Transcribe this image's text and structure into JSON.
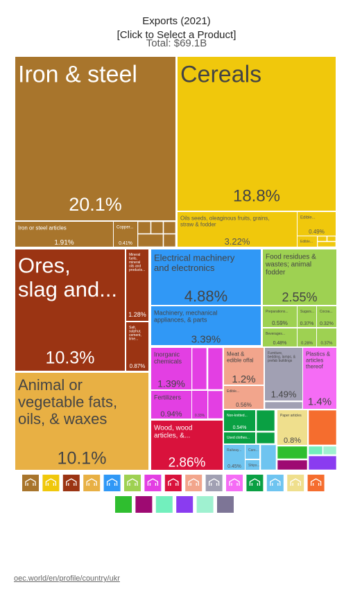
{
  "title": "Exports (2021)",
  "subtitle": "[Click to Select a Product]",
  "total": "Total: $69.1B",
  "source": "oec.world/en/profile/country/ukr",
  "chart_data": {
    "type": "treemap",
    "total": "$69.1B",
    "tiles": [
      {
        "name": "Iron & steel",
        "share": "20.1%",
        "value": 20.1,
        "color": "#a8752c"
      },
      {
        "name": "Iron or steel articles",
        "share": "1.91%",
        "value": 1.91,
        "color": "#a8752c"
      },
      {
        "name": "Copper...",
        "share": "0.41%",
        "value": 0.41,
        "color": "#a8752c"
      },
      {
        "name": "Cereals",
        "share": "18.8%",
        "value": 18.8,
        "color": "#f0c80c"
      },
      {
        "name": "Oils seeds, oleaginous fruits, grains, straw & fodder",
        "share": "3.22%",
        "value": 3.22,
        "color": "#f0c80c"
      },
      {
        "name": "Edible fruits...",
        "share": "0.49%",
        "value": 0.49,
        "color": "#f0c80c"
      },
      {
        "name": "Edible...",
        "share": "",
        "value": 0.3,
        "color": "#f0c80c"
      },
      {
        "name": "Ores, slag and ash",
        "share": "10.3%",
        "value": 10.3,
        "color": "#9b3413"
      },
      {
        "name": "Mineral fuels, mineral oils and products of their...",
        "share": "1.28%",
        "value": 1.28,
        "color": "#9b3413"
      },
      {
        "name": "Salt, sulphur, cement, lime...",
        "share": "0.87%",
        "value": 0.87,
        "color": "#9b3413"
      },
      {
        "name": "Animal or vegetable fats, oils, & waxes",
        "share": "10.1%",
        "value": 10.1,
        "color": "#e8b044"
      },
      {
        "name": "Electrical machinery and electronics",
        "share": "4.88%",
        "value": 4.88,
        "color": "#3098f6"
      },
      {
        "name": "Machinery, mechanical appliances, & parts",
        "share": "3.39%",
        "value": 3.39,
        "color": "#3098f6"
      },
      {
        "name": "Food residues & wastes; animal fodder",
        "share": "2.55%",
        "value": 2.55,
        "color": "#9ed152"
      },
      {
        "name": "Preparations of...",
        "share": "0.59%",
        "value": 0.59,
        "color": "#9ed152"
      },
      {
        "name": "Sugars &...",
        "share": "0.37%",
        "value": 0.37,
        "color": "#9ed152"
      },
      {
        "name": "Cocoa...",
        "share": "0.32%",
        "value": 0.32,
        "color": "#9ed152"
      },
      {
        "name": "Beverages...",
        "share": "0.48%",
        "value": 0.48,
        "color": "#9ed152"
      },
      {
        "name": "",
        "share": "0.28%",
        "value": 0.28,
        "color": "#9ed152"
      },
      {
        "name": "",
        "share": "0.37%",
        "value": 0.37,
        "color": "#9ed152"
      },
      {
        "name": "Inorganic chemicals",
        "share": "1.39%",
        "value": 1.39,
        "color": "#e33fe3"
      },
      {
        "name": "Fertilizers",
        "share": "0.94%",
        "value": 0.94,
        "color": "#e33fe3"
      },
      {
        "name": "",
        "share": "0.33%",
        "value": 0.33,
        "color": "#e33fe3"
      },
      {
        "name": "Meat & edible offal",
        "share": "1.2%",
        "value": 1.2,
        "color": "#f2a58c"
      },
      {
        "name": "Edible...",
        "share": "0.56%",
        "value": 0.56,
        "color": "#f2a58c"
      },
      {
        "name": "Furniture, bedding, lamps, & prefab buildings",
        "share": "1.49%",
        "value": 1.49,
        "color": "#a1a0b3"
      },
      {
        "name": "Plastics & articles thereof",
        "share": "1.4%",
        "value": 1.4,
        "color": "#f56cf5"
      },
      {
        "name": "Wood, wood articles, & charcoal",
        "share": "2.86%",
        "value": 2.86,
        "color": "#d9123c"
      },
      {
        "name": "Non-knitted...",
        "share": "0.54%",
        "value": 0.54,
        "color": "#0aa043"
      },
      {
        "name": "Used clothes &...",
        "share": "",
        "value": 0.3,
        "color": "#0aa043"
      },
      {
        "name": "Railway...",
        "share": "0.45%",
        "value": 0.45,
        "color": "#6ec4f0"
      },
      {
        "name": "Cars...",
        "share": "",
        "value": 0.2,
        "color": "#6ec4f0"
      },
      {
        "name": "Ships...",
        "share": "",
        "value": 0.2,
        "color": "#6ec4f0"
      },
      {
        "name": "Paper articles",
        "share": "0.8%",
        "value": 0.8,
        "color": "#efdf8d"
      }
    ]
  },
  "legend": [
    {
      "icon": "animal-products-icon",
      "color": "#a8752c"
    },
    {
      "icon": "vegetable-products-icon",
      "color": "#f0c80c"
    },
    {
      "icon": "minerals-icon",
      "color": "#9b3413"
    },
    {
      "icon": "foodstuffs-icon",
      "color": "#e8b044"
    },
    {
      "icon": "machines-icon",
      "color": "#3098f6"
    },
    {
      "icon": "chemicals-icon",
      "color": "#9ed152"
    },
    {
      "icon": "metals-icon",
      "color": "#e33fe3"
    },
    {
      "icon": "wood-icon",
      "color": "#d9123c"
    },
    {
      "icon": "transport-icon",
      "color": "#f2a58c"
    },
    {
      "icon": "textiles-icon",
      "color": "#a1a0b3"
    },
    {
      "icon": "plastics-icon",
      "color": "#f56cf5"
    },
    {
      "icon": "footwear-icon",
      "color": "#0aa043"
    },
    {
      "icon": "stone-icon",
      "color": "#6ec4f0"
    },
    {
      "icon": "paper-icon",
      "color": "#efdf8d"
    },
    {
      "icon": "instruments-icon",
      "color": "#f56d2e"
    },
    {
      "icon": "misc-icon",
      "color": "#2fbe2f"
    },
    {
      "icon": "arms-icon",
      "color": "#9e0a72"
    },
    {
      "icon": "precious-icon",
      "color": "#72efbd"
    },
    {
      "icon": "art-icon",
      "color": "#8a3cf0"
    },
    {
      "icon": "services-icon",
      "color": "#9ff1d0"
    },
    {
      "icon": "other-icon",
      "color": "#7d7596"
    }
  ]
}
